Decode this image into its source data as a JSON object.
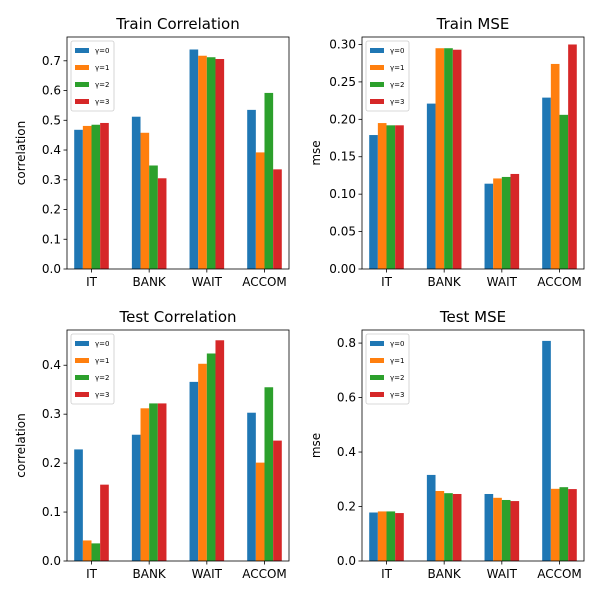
{
  "figure": {
    "series_names": [
      "γ=0",
      "γ=1",
      "γ=2",
      "γ=3"
    ],
    "colors": [
      "#1f77b4",
      "#ff7f0e",
      "#2ca02c",
      "#d62728"
    ]
  },
  "chart_data": [
    {
      "type": "bar",
      "title": "Train Correlation",
      "xlabel": "",
      "ylabel": "correlation",
      "categories": [
        "IT",
        "BANK",
        "WAIT",
        "ACCOM"
      ],
      "ylim": [
        0,
        0.78
      ],
      "yticks": [
        0.0,
        0.1,
        0.2,
        0.3,
        0.4,
        0.5,
        0.6,
        0.7
      ],
      "tick_labels": [
        "0.0",
        "0.1",
        "0.2",
        "0.3",
        "0.4",
        "0.5",
        "0.6",
        "0.7"
      ],
      "legend": "top-left",
      "grid": false,
      "series": [
        {
          "name": "γ=0",
          "values": [
            0.468,
            0.512,
            0.738,
            0.535
          ]
        },
        {
          "name": "γ=1",
          "values": [
            0.481,
            0.458,
            0.717,
            0.392
          ]
        },
        {
          "name": "γ=2",
          "values": [
            0.485,
            0.348,
            0.712,
            0.592
          ]
        },
        {
          "name": "γ=3",
          "values": [
            0.491,
            0.305,
            0.706,
            0.335
          ]
        }
      ]
    },
    {
      "type": "bar",
      "title": "Train MSE",
      "xlabel": "",
      "ylabel": "mse",
      "categories": [
        "IT",
        "BANK",
        "WAIT",
        "ACCOM"
      ],
      "ylim": [
        0,
        0.31
      ],
      "yticks": [
        0.0,
        0.05,
        0.1,
        0.15,
        0.2,
        0.25,
        0.3
      ],
      "tick_labels": [
        "0.00",
        "0.05",
        "0.10",
        "0.15",
        "0.20",
        "0.25",
        "0.30"
      ],
      "legend": "top-left",
      "grid": false,
      "series": [
        {
          "name": "γ=0",
          "values": [
            0.179,
            0.221,
            0.114,
            0.229
          ]
        },
        {
          "name": "γ=1",
          "values": [
            0.195,
            0.295,
            0.121,
            0.274
          ]
        },
        {
          "name": "γ=2",
          "values": [
            0.192,
            0.295,
            0.123,
            0.206
          ]
        },
        {
          "name": "γ=3",
          "values": [
            0.192,
            0.293,
            0.127,
            0.3
          ]
        }
      ]
    },
    {
      "type": "bar",
      "title": "Test Correlation",
      "xlabel": "",
      "ylabel": "correlation",
      "categories": [
        "IT",
        "BANK",
        "WAIT",
        "ACCOM"
      ],
      "ylim": [
        0,
        0.472
      ],
      "yticks": [
        0.0,
        0.1,
        0.2,
        0.3,
        0.4
      ],
      "tick_labels": [
        "0.0",
        "0.1",
        "0.2",
        "0.3",
        "0.4"
      ],
      "legend": "top-left",
      "grid": false,
      "series": [
        {
          "name": "γ=0",
          "values": [
            0.228,
            0.258,
            0.366,
            0.303
          ]
        },
        {
          "name": "γ=1",
          "values": [
            0.042,
            0.312,
            0.403,
            0.201
          ]
        },
        {
          "name": "γ=2",
          "values": [
            0.036,
            0.322,
            0.424,
            0.355
          ]
        },
        {
          "name": "γ=3",
          "values": [
            0.156,
            0.322,
            0.451,
            0.246
          ]
        }
      ]
    },
    {
      "type": "bar",
      "title": "Test MSE",
      "xlabel": "",
      "ylabel": "mse",
      "categories": [
        "IT",
        "BANK",
        "WAIT",
        "ACCOM"
      ],
      "ylim": [
        0,
        0.848
      ],
      "yticks": [
        0.0,
        0.2,
        0.4,
        0.6,
        0.8
      ],
      "tick_labels": [
        "0.0",
        "0.2",
        "0.4",
        "0.6",
        "0.8"
      ],
      "legend": "top-left",
      "grid": false,
      "series": [
        {
          "name": "γ=0",
          "values": [
            0.178,
            0.316,
            0.246,
            0.808
          ]
        },
        {
          "name": "γ=1",
          "values": [
            0.182,
            0.257,
            0.232,
            0.265
          ]
        },
        {
          "name": "γ=2",
          "values": [
            0.182,
            0.249,
            0.224,
            0.271
          ]
        },
        {
          "name": "γ=3",
          "values": [
            0.176,
            0.246,
            0.22,
            0.264
          ]
        }
      ]
    }
  ]
}
